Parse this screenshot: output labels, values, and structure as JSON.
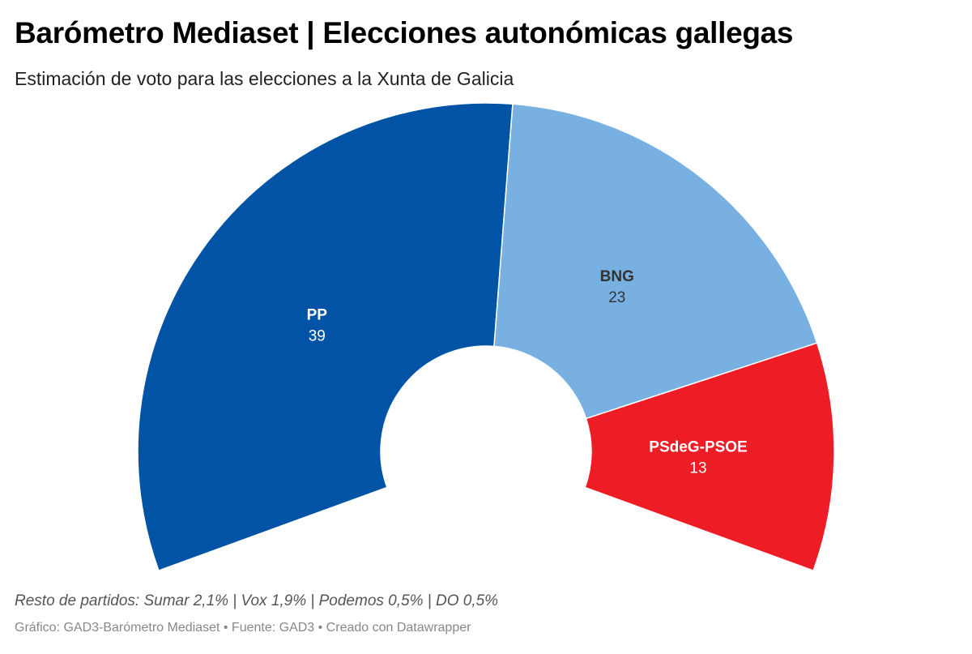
{
  "header": {
    "title": "Barómetro Mediaset | Elecciones autonómicas gallegas",
    "subtitle": "Estimación de voto para las elecciones a la Xunta de Galicia"
  },
  "notes": {
    "rest": "Resto de partidos: Sumar 2,1% | Vox 1,9% | Podemos 0,5% | DO 0,5%",
    "footer": "Gráfico: GAD3-Barómetro Mediaset • Fuente: GAD3 • Creado con Datawrapper"
  },
  "chart_data": {
    "type": "pie",
    "subtype": "parliament-donut",
    "total_seats": 75,
    "arc_degrees": 220,
    "series": [
      {
        "name": "PP",
        "value": 39,
        "color": "#0053a5",
        "label_color": "#ffffff"
      },
      {
        "name": "BNG",
        "value": 23,
        "color": "#78b1e1",
        "label_color": "#333333"
      },
      {
        "name": "PSdeG-PSOE",
        "value": 13,
        "color": "#ee1c25",
        "label_color": "#ffffff"
      }
    ]
  }
}
